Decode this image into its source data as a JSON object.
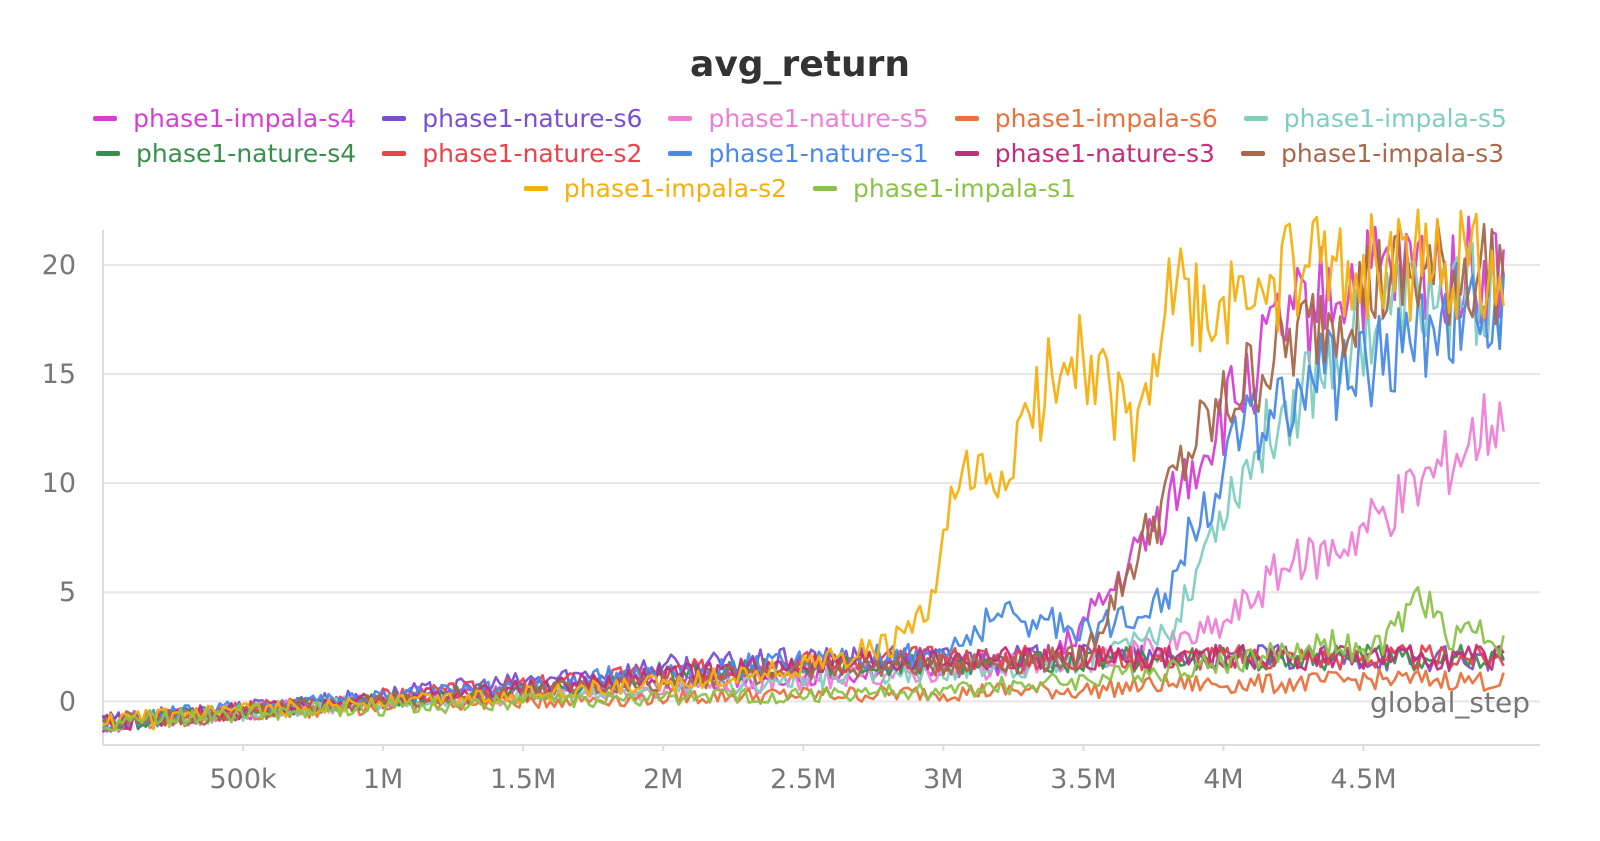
{
  "chart_data": {
    "type": "line",
    "title": "avg_return",
    "xlabel": "global_step",
    "ylabel": "",
    "xlim": [
      0,
      5000000
    ],
    "ylim": [
      -2,
      21
    ],
    "x_ticks": [
      500000,
      1000000,
      1500000,
      2000000,
      2500000,
      3000000,
      3500000,
      4000000,
      4500000
    ],
    "x_tick_labels": [
      "500k",
      "1M",
      "1.5M",
      "2M",
      "2.5M",
      "3M",
      "3.5M",
      "4M",
      "4.5M"
    ],
    "y_ticks": [
      0,
      5,
      10,
      15,
      20
    ],
    "y_tick_labels": [
      "0",
      "5",
      "10",
      "15",
      "20"
    ],
    "grid": "horizontal",
    "legend_position": "top",
    "series": [
      {
        "name": "phase1-impala-s4",
        "color": "#d63fd6",
        "x": [
          0,
          500000,
          1000000,
          1500000,
          2000000,
          2500000,
          3000000,
          3200000,
          3400000,
          3600000,
          3800000,
          4000000,
          4200000,
          4400000,
          4600000,
          4800000,
          5000000
        ],
        "y": [
          -1,
          -0.5,
          0,
          0.4,
          0.9,
          1.2,
          1.7,
          1.6,
          2,
          5,
          9,
          13,
          17,
          19,
          19.5,
          19.8,
          19.5
        ]
      },
      {
        "name": "phase1-nature-s6",
        "color": "#7b4fd4",
        "x": [
          0,
          500000,
          1000000,
          1500000,
          2000000,
          2500000,
          3000000,
          3500000,
          4000000,
          4500000,
          5000000
        ],
        "y": [
          -1,
          -0.3,
          0.3,
          0.9,
          1.6,
          1.9,
          2,
          2,
          2,
          2,
          1.9
        ]
      },
      {
        "name": "phase1-nature-s5",
        "color": "#ee7fd6",
        "x": [
          0,
          500000,
          1000000,
          1500000,
          2000000,
          2500000,
          3000000,
          3500000,
          3800000,
          4000000,
          4200000,
          4400000,
          4600000,
          4800000,
          5000000
        ],
        "y": [
          -1,
          -0.5,
          0,
          0.2,
          0.5,
          1,
          1.4,
          1.8,
          2.5,
          3.5,
          6,
          7,
          9,
          11,
          13.5
        ]
      },
      {
        "name": "phase1-impala-s6",
        "color": "#e8723c",
        "x": [
          0,
          500000,
          1000000,
          1500000,
          2000000,
          2500000,
          3000000,
          3200000,
          3500000,
          3800000,
          4000000,
          4200000,
          4500000,
          4800000,
          5000000
        ],
        "y": [
          -1,
          -0.5,
          -0.2,
          0,
          0.2,
          0.3,
          0.4,
          0.5,
          0.5,
          0.8,
          0.8,
          0.8,
          1,
          1,
          0.9
        ]
      },
      {
        "name": "phase1-impala-s5",
        "color": "#7fcfc0",
        "x": [
          0,
          500000,
          1000000,
          1500000,
          2000000,
          2500000,
          3000000,
          3500000,
          3800000,
          4000000,
          4200000,
          4400000,
          4600000,
          4800000,
          5000000
        ],
        "y": [
          -1,
          -0.5,
          0,
          0.3,
          0.6,
          1,
          1.4,
          1.8,
          3,
          9,
          13,
          16,
          18,
          18.5,
          18.5
        ]
      },
      {
        "name": "phase1-nature-s4",
        "color": "#3a8f4d",
        "x": [
          0,
          500000,
          1000000,
          1500000,
          2000000,
          2500000,
          3000000,
          3500000,
          4000000,
          4500000,
          5000000
        ],
        "y": [
          -1,
          -0.4,
          0.1,
          0.6,
          1.1,
          1.6,
          1.8,
          1.9,
          2,
          2,
          2
        ]
      },
      {
        "name": "phase1-nature-s2",
        "color": "#e8434a",
        "x": [
          0,
          500000,
          1000000,
          1500000,
          2000000,
          2500000,
          3000000,
          3500000,
          4000000,
          4500000,
          5000000
        ],
        "y": [
          -1,
          -0.4,
          0.2,
          0.7,
          1.3,
          1.8,
          2,
          2,
          2,
          2,
          2
        ]
      },
      {
        "name": "phase1-nature-s1",
        "color": "#4a8ae6",
        "x": [
          0,
          500000,
          1000000,
          1500000,
          2000000,
          2500000,
          3000000,
          3200000,
          3400000,
          3600000,
          3800000,
          4000000,
          4200000,
          4400000,
          4600000,
          4800000,
          5000000
        ],
        "y": [
          -1,
          -0.3,
          0.2,
          0.7,
          1.4,
          1.8,
          2.2,
          4,
          3.5,
          3.5,
          5,
          11,
          14,
          15,
          16,
          18,
          17.5
        ]
      },
      {
        "name": "phase1-nature-s3",
        "color": "#c22e7a",
        "x": [
          0,
          500000,
          1000000,
          1500000,
          2000000,
          2500000,
          3000000,
          3500000,
          4000000,
          4500000,
          5000000
        ],
        "y": [
          -1,
          -0.4,
          0.1,
          0.6,
          1.2,
          1.7,
          1.9,
          2,
          2,
          2,
          2
        ]
      },
      {
        "name": "phase1-impala-s3",
        "color": "#a8684a",
        "x": [
          0,
          500000,
          1000000,
          1500000,
          2000000,
          2500000,
          3000000,
          3500000,
          3700000,
          3900000,
          4100000,
          4300000,
          4500000,
          4700000,
          5000000
        ],
        "y": [
          -1,
          -0.5,
          0,
          0.4,
          0.9,
          1.5,
          1.7,
          2,
          7,
          12,
          15,
          17,
          19,
          19.5,
          20
        ]
      },
      {
        "name": "phase1-impala-s2",
        "color": "#f5b00e",
        "x": [
          0,
          500000,
          1000000,
          1500000,
          2000000,
          2500000,
          2800000,
          2950000,
          3050000,
          3200000,
          3350000,
          3450000,
          3550000,
          3700000,
          3800000,
          3950000,
          4100000,
          4300000,
          4500000,
          4700000,
          4900000,
          5000000
        ],
        "y": [
          -1,
          -0.5,
          0,
          0.3,
          0.8,
          1.6,
          2.5,
          4,
          10,
          10,
          14,
          17,
          15,
          12,
          19,
          17,
          19,
          19.5,
          20,
          20,
          20.5,
          20
        ]
      },
      {
        "name": "phase1-impala-s1",
        "color": "#8bc34a",
        "x": [
          0,
          500000,
          1000000,
          1500000,
          2000000,
          2500000,
          3000000,
          3500000,
          4000000,
          4200000,
          4400000,
          4500000,
          4600000,
          4700000,
          4800000,
          4900000,
          5000000
        ],
        "y": [
          -1,
          -0.5,
          -0.3,
          0,
          0.2,
          0.3,
          0.5,
          1,
          1.8,
          2.2,
          2.8,
          2,
          3,
          5,
          3,
          3.5,
          2.5
        ]
      }
    ]
  }
}
